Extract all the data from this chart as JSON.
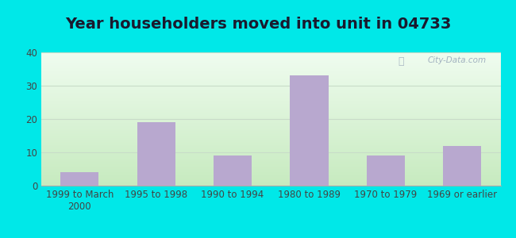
{
  "title": "Year householders moved into unit in 04733",
  "categories": [
    "1999 to March\n2000",
    "1995 to 1998",
    "1990 to 1994",
    "1980 to 1989",
    "1970 to 1979",
    "1969 or earlier"
  ],
  "values": [
    4,
    19,
    9,
    33,
    9,
    12
  ],
  "bar_color": "#b8a8cf",
  "ylim": [
    0,
    40
  ],
  "yticks": [
    0,
    10,
    20,
    30,
    40
  ],
  "background_outer": "#00e8e8",
  "bg_top_left": "#d8efd8",
  "bg_top_right": "#eaf5f0",
  "bg_bottom_left": "#c8e8c0",
  "bg_bottom_right": "#e8f5ee",
  "grid_color": "#d8e8d0",
  "title_fontsize": 14,
  "tick_fontsize": 8.5,
  "watermark": "City-Data.com"
}
